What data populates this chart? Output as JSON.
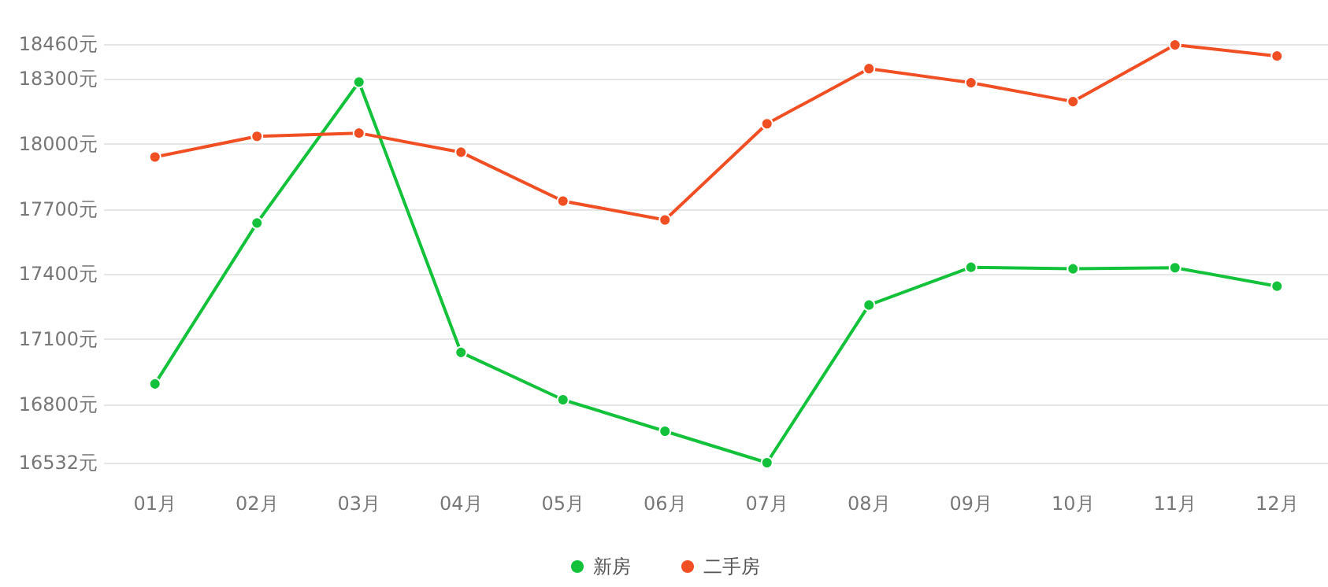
{
  "chart_data": {
    "type": "line",
    "categories": [
      "01月",
      "02月",
      "03月",
      "04月",
      "05月",
      "06月",
      "07月",
      "08月",
      "09月",
      "10月",
      "11月",
      "12月"
    ],
    "series": [
      {
        "name": "新房",
        "color": "#13c23a",
        "values": [
          16895,
          17636,
          18285,
          17040,
          16822,
          16677,
          16532,
          17258,
          17432,
          17425,
          17430,
          17345
        ]
      },
      {
        "name": "二手房",
        "color": "#f04e23",
        "values": [
          17940,
          18035,
          18050,
          17962,
          17737,
          17650,
          18093,
          18347,
          18282,
          18195,
          18456,
          18405
        ]
      }
    ],
    "ylim": [
      16532,
      18460
    ],
    "yticks": [
      {
        "value": 16532,
        "label": "16532元"
      },
      {
        "value": 16800,
        "label": "16800元"
      },
      {
        "value": 17100,
        "label": "17100元"
      },
      {
        "value": 17400,
        "label": "17400元"
      },
      {
        "value": 17700,
        "label": "17700元"
      },
      {
        "value": 18000,
        "label": "18000元"
      },
      {
        "value": 18300,
        "label": "18300元"
      },
      {
        "value": 18460,
        "label": "18460元"
      }
    ],
    "grid": "y",
    "legend": "bottom",
    "marker": "circle",
    "line_style": "solid"
  }
}
